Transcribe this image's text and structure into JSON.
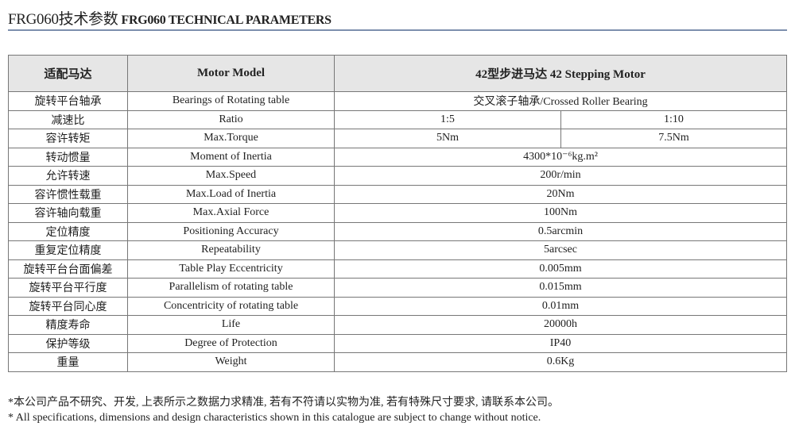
{
  "title": {
    "cn": "FRG060技术参数",
    "en": "FRG060 TECHNICAL PARAMETERS"
  },
  "table": {
    "header": [
      "适配马达",
      "Motor Model",
      "42型步进马达   42 Stepping Motor"
    ],
    "rows": [
      {
        "cn": "旋转平台轴承",
        "en": "Bearings of Rotating table",
        "values": [
          "交叉滚子轴承/Crossed Roller Bearing"
        ]
      },
      {
        "cn": "减速比",
        "en": "Ratio",
        "values": [
          "1:5",
          "1:10"
        ]
      },
      {
        "cn": "容许转矩",
        "en": "Max.Torque",
        "values": [
          "5Nm",
          "7.5Nm"
        ]
      },
      {
        "cn": "转动惯量",
        "en": "Moment of Inertia",
        "values": [
          "4300*10⁻⁶kg.m²"
        ]
      },
      {
        "cn": "允许转速",
        "en": "Max.Speed",
        "values": [
          "200r/min"
        ]
      },
      {
        "cn": "容许惯性载重",
        "en": "Max.Load of Inertia",
        "values": [
          "20Nm"
        ]
      },
      {
        "cn": "容许轴向载重",
        "en": "Max.Axial Force",
        "values": [
          "100Nm"
        ]
      },
      {
        "cn": "定位精度",
        "en": "Positioning Accuracy",
        "values": [
          "0.5arcmin"
        ]
      },
      {
        "cn": "重复定位精度",
        "en": "Repeatability",
        "values": [
          "5arcsec"
        ]
      },
      {
        "cn": "旋转平台台面偏差",
        "en": "Table Play Eccentricity",
        "values": [
          "0.005mm"
        ]
      },
      {
        "cn": "旋转平台平行度",
        "en": "Parallelism of rotating table",
        "values": [
          "0.015mm"
        ]
      },
      {
        "cn": "旋转平台同心度",
        "en": "Concentricity of rotating table",
        "values": [
          "0.01mm"
        ]
      },
      {
        "cn": "精度寿命",
        "en": "Life",
        "values": [
          "20000h"
        ]
      },
      {
        "cn": "保护等级",
        "en": "Degree of Protection",
        "values": [
          "IP40"
        ]
      },
      {
        "cn": "重量",
        "en": "Weight",
        "values": [
          "0.6Kg"
        ]
      }
    ]
  },
  "notes": {
    "cn": "*本公司产品不研究、开发, 上表所示之数据力求精准, 若有不符请以实物为准, 若有特殊尺寸要求, 请联系本公司。",
    "en": "* All specifications, dimensions and design characteristics shown in this catalogue are subject to change without notice."
  }
}
